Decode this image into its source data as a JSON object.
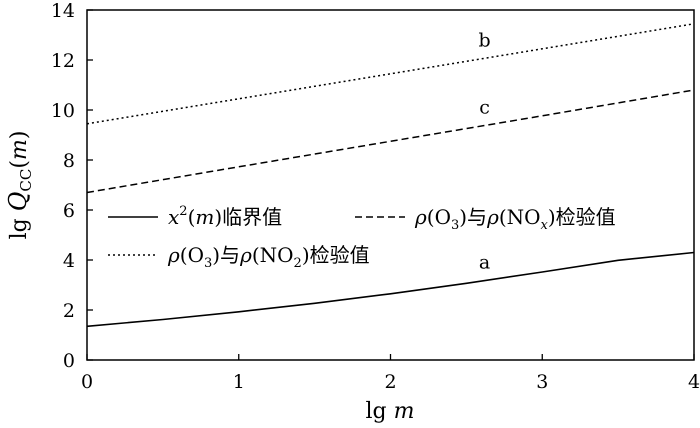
{
  "chart_data": {
    "type": "line",
    "xlabel": "lg m",
    "ylabel": "lg Q_CC(m)",
    "xlim": [
      0,
      4
    ],
    "ylim": [
      0,
      14
    ],
    "xticks": [
      "0",
      "1",
      "2",
      "3",
      "4"
    ],
    "yticks": [
      "0",
      "2",
      "4",
      "6",
      "8",
      "10",
      "12",
      "14"
    ],
    "grid": false,
    "legend_position": "middle-left",
    "series": [
      {
        "name": "x²(m)临界值",
        "label": "a",
        "style": "solid",
        "x": [
          0,
          0.5,
          1,
          1.5,
          2,
          2.5,
          3,
          3.5,
          4
        ],
        "y": [
          1.35,
          1.62,
          1.93,
          2.27,
          2.65,
          3.07,
          3.52,
          3.99,
          4.3
        ]
      },
      {
        "name": "ρ(O₃)与ρ(NO₂)检验值",
        "label": "b",
        "style": "dotted",
        "x": [
          0,
          1,
          2,
          3,
          4
        ],
        "y": [
          9.45,
          10.45,
          11.45,
          12.45,
          13.45
        ]
      },
      {
        "name": "ρ(O₃)与ρ(NOₓ)检验值",
        "label": "c",
        "style": "dashed",
        "x": [
          0,
          1,
          2,
          3,
          4
        ],
        "y": [
          6.7,
          7.73,
          8.75,
          9.77,
          10.8
        ]
      }
    ]
  }
}
